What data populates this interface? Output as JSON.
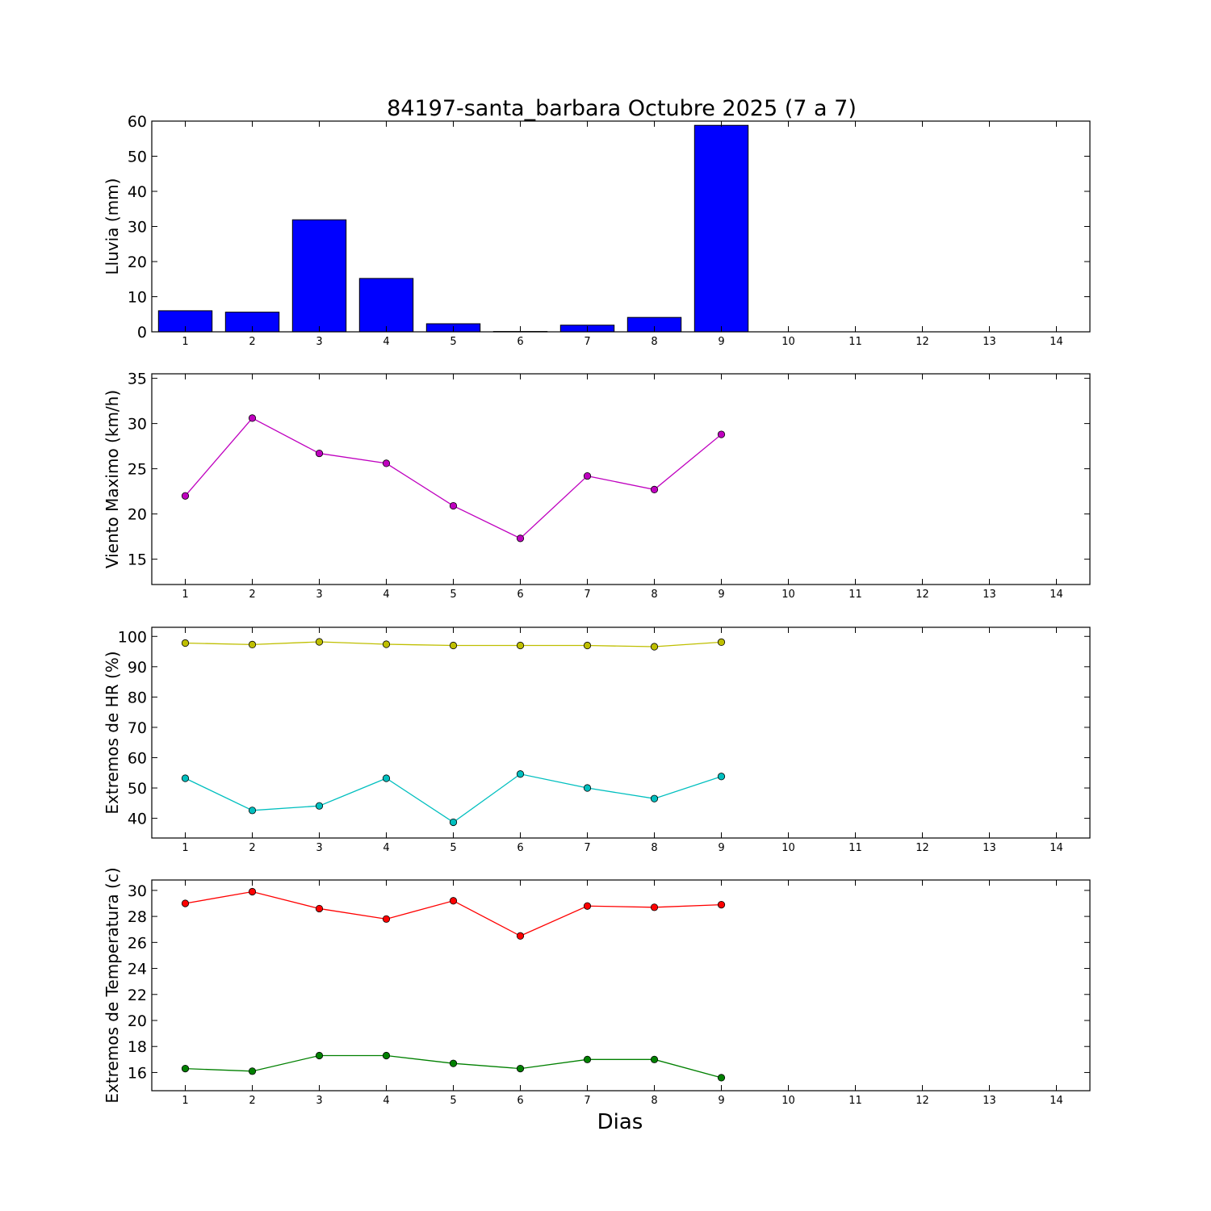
{
  "figure": {
    "title": "84197-santa_barbara Octubre 2025  (7 a 7)",
    "xlabel": "Dias"
  },
  "chart_data": [
    {
      "type": "bar",
      "ylabel": "Lluvia (mm)",
      "ylim": [
        0,
        60
      ],
      "yticks": [
        0,
        10,
        20,
        30,
        40,
        50,
        60
      ],
      "xlim": [
        0.5,
        14.5
      ],
      "xticks": [
        1,
        2,
        3,
        4,
        5,
        6,
        7,
        8,
        9,
        10,
        11,
        12,
        13,
        14
      ],
      "categories": [
        1,
        2,
        3,
        4,
        5,
        6,
        7,
        8,
        9
      ],
      "series": [
        {
          "values": [
            6.0,
            5.6,
            31.9,
            15.2,
            2.3,
            0.1,
            1.9,
            4.1,
            58.8
          ],
          "color": "#0000ff"
        }
      ],
      "grid": false
    },
    {
      "type": "line",
      "ylabel": "Viento Maximo (km/h)",
      "ylim": [
        12.2,
        35.5
      ],
      "yticks": [
        15,
        20,
        25,
        30,
        35
      ],
      "xlim": [
        0.5,
        14.5
      ],
      "xticks": [
        1,
        2,
        3,
        4,
        5,
        6,
        7,
        8,
        9,
        10,
        11,
        12,
        13,
        14
      ],
      "x": [
        1,
        2,
        3,
        4,
        5,
        6,
        7,
        8,
        9
      ],
      "series": [
        {
          "values": [
            22.0,
            30.6,
            26.7,
            25.6,
            20.9,
            17.3,
            24.2,
            22.7,
            28.8
          ],
          "color": "#bf00bf"
        }
      ],
      "grid": false
    },
    {
      "type": "line",
      "ylabel": "Extremos de HR (%)",
      "ylim": [
        33.5,
        103
      ],
      "yticks": [
        40,
        50,
        60,
        70,
        80,
        90,
        100
      ],
      "xlim": [
        0.5,
        14.5
      ],
      "xticks": [
        1,
        2,
        3,
        4,
        5,
        6,
        7,
        8,
        9,
        10,
        11,
        12,
        13,
        14
      ],
      "x": [
        1,
        2,
        3,
        4,
        5,
        6,
        7,
        8,
        9
      ],
      "series": [
        {
          "values": [
            97.8,
            97.3,
            98.2,
            97.4,
            97.0,
            97.0,
            97.0,
            96.6,
            98.1
          ],
          "color": "#bfbf00"
        },
        {
          "values": [
            53.2,
            42.6,
            44.1,
            53.2,
            38.7,
            54.6,
            50.0,
            46.5,
            53.8
          ],
          "color": "#00bfbf"
        }
      ],
      "grid": false
    },
    {
      "type": "line",
      "ylabel": "Extremos de Temperatura (c)",
      "ylim": [
        14.6,
        30.8
      ],
      "yticks": [
        16,
        18,
        20,
        22,
        24,
        26,
        28,
        30
      ],
      "xlim": [
        0.5,
        14.5
      ],
      "xticks": [
        1,
        2,
        3,
        4,
        5,
        6,
        7,
        8,
        9,
        10,
        11,
        12,
        13,
        14
      ],
      "x": [
        1,
        2,
        3,
        4,
        5,
        6,
        7,
        8,
        9
      ],
      "series": [
        {
          "values": [
            29.0,
            29.9,
            28.6,
            27.8,
            29.2,
            26.5,
            28.8,
            28.7,
            28.9
          ],
          "color": "#ff0000"
        },
        {
          "values": [
            16.3,
            16.1,
            17.3,
            17.3,
            16.7,
            16.3,
            17.0,
            17.0,
            15.6
          ],
          "color": "#008000"
        }
      ],
      "grid": false
    }
  ]
}
